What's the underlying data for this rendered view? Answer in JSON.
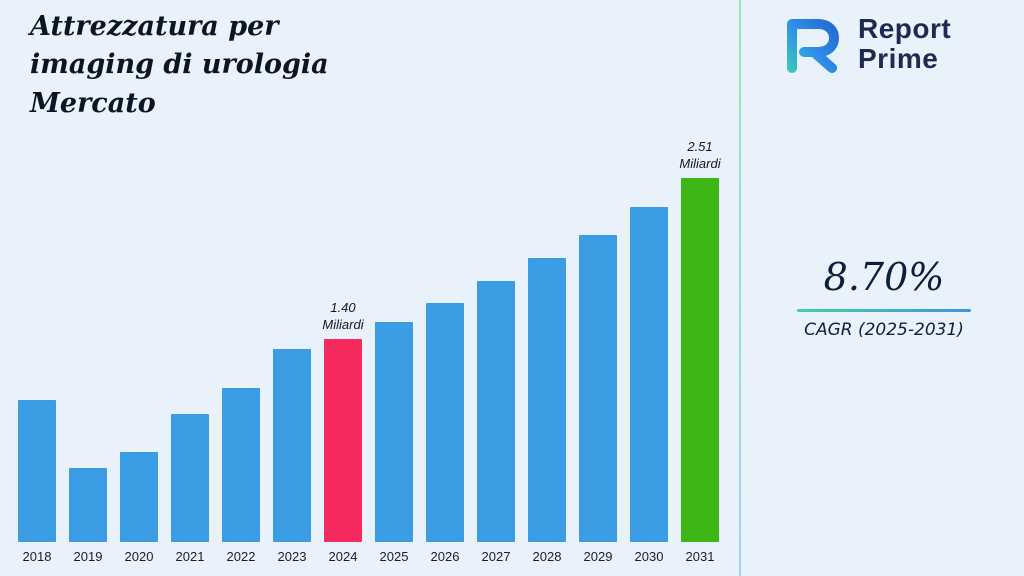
{
  "page": {
    "background": "#e9f1fb",
    "divider_gradient": [
      "#8fe8b8",
      "#9fd4ee"
    ],
    "accent_line_gradient": [
      "#45cfa2",
      "#3f93e0"
    ]
  },
  "title_lines": [
    "Attrezzatura per",
    "imaging di urologia",
    "Mercato"
  ],
  "logo": {
    "name": "Report Prime",
    "line1": "Report",
    "line2": "Prime",
    "text_color": "#1e2b50"
  },
  "stat": {
    "value": "8.70%",
    "caption": "CAGR (2025-2031)"
  },
  "chart_data": {
    "type": "bar",
    "title": "Attrezzatura per imaging di urologia Mercato",
    "unit": "Miliardi",
    "categories": [
      "2018",
      "2019",
      "2020",
      "2021",
      "2022",
      "2023",
      "2024",
      "2025",
      "2026",
      "2027",
      "2028",
      "2029",
      "2030",
      "2031"
    ],
    "values": [
      0.98,
      0.51,
      0.62,
      0.88,
      1.06,
      1.33,
      1.4,
      1.52,
      1.65,
      1.8,
      1.96,
      2.12,
      2.31,
      2.51
    ],
    "ylim": [
      0,
      2.6
    ],
    "grid": false,
    "legend": false,
    "bar_color": "#3a9ce2",
    "highlights": [
      {
        "category": "2024",
        "value_label": "1.40",
        "unit": "Miliardi",
        "color": "#f52a5f"
      },
      {
        "category": "2031",
        "value_label": "2.51",
        "unit": "Miliardi",
        "color": "#3eb716"
      }
    ]
  }
}
